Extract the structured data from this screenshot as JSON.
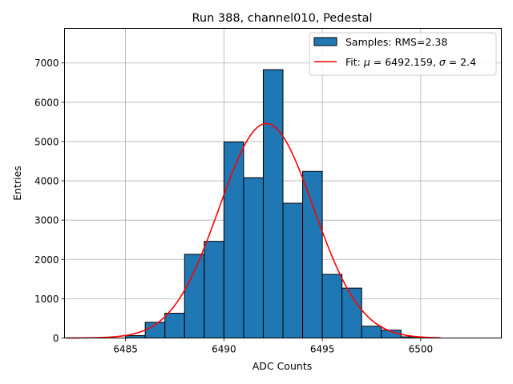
{
  "chart_data": {
    "type": "bar",
    "title": "Run 388, channel010, Pedestal",
    "xlabel": "ADC Counts",
    "ylabel": "Entries",
    "xlim": [
      6481.9,
      6504.1
    ],
    "ylim": [
      0,
      7880
    ],
    "grid": true,
    "legend_position": "top-right",
    "x_ticks": [
      6485,
      6490,
      6495,
      6500
    ],
    "y_ticks": [
      0,
      1000,
      2000,
      3000,
      4000,
      5000,
      6000,
      7000
    ],
    "bin_width": 1,
    "bars": {
      "name": "Samples: RMS=2.38",
      "color": "#1f77b4",
      "edgecolor": "#000000",
      "bin_starts": [
        6485,
        6486,
        6487,
        6488,
        6489,
        6490,
        6491,
        6492,
        6493,
        6494,
        6495,
        6496,
        6497,
        6498,
        6499
      ],
      "values": [
        60,
        400,
        630,
        2130,
        2460,
        4990,
        4080,
        6830,
        3430,
        4240,
        1620,
        1270,
        300,
        200,
        30
      ]
    },
    "fit": {
      "name_prefix": "Fit: ",
      "mu_symbol": "μ",
      "mu_value": " = 6492.159, ",
      "sigma_symbol": "σ",
      "sigma_value": " = 2.4",
      "color": "#ff0000",
      "mu": 6492.159,
      "sigma": 2.4,
      "amplitude": 5460,
      "x_range": [
        6482,
        6501
      ]
    }
  }
}
